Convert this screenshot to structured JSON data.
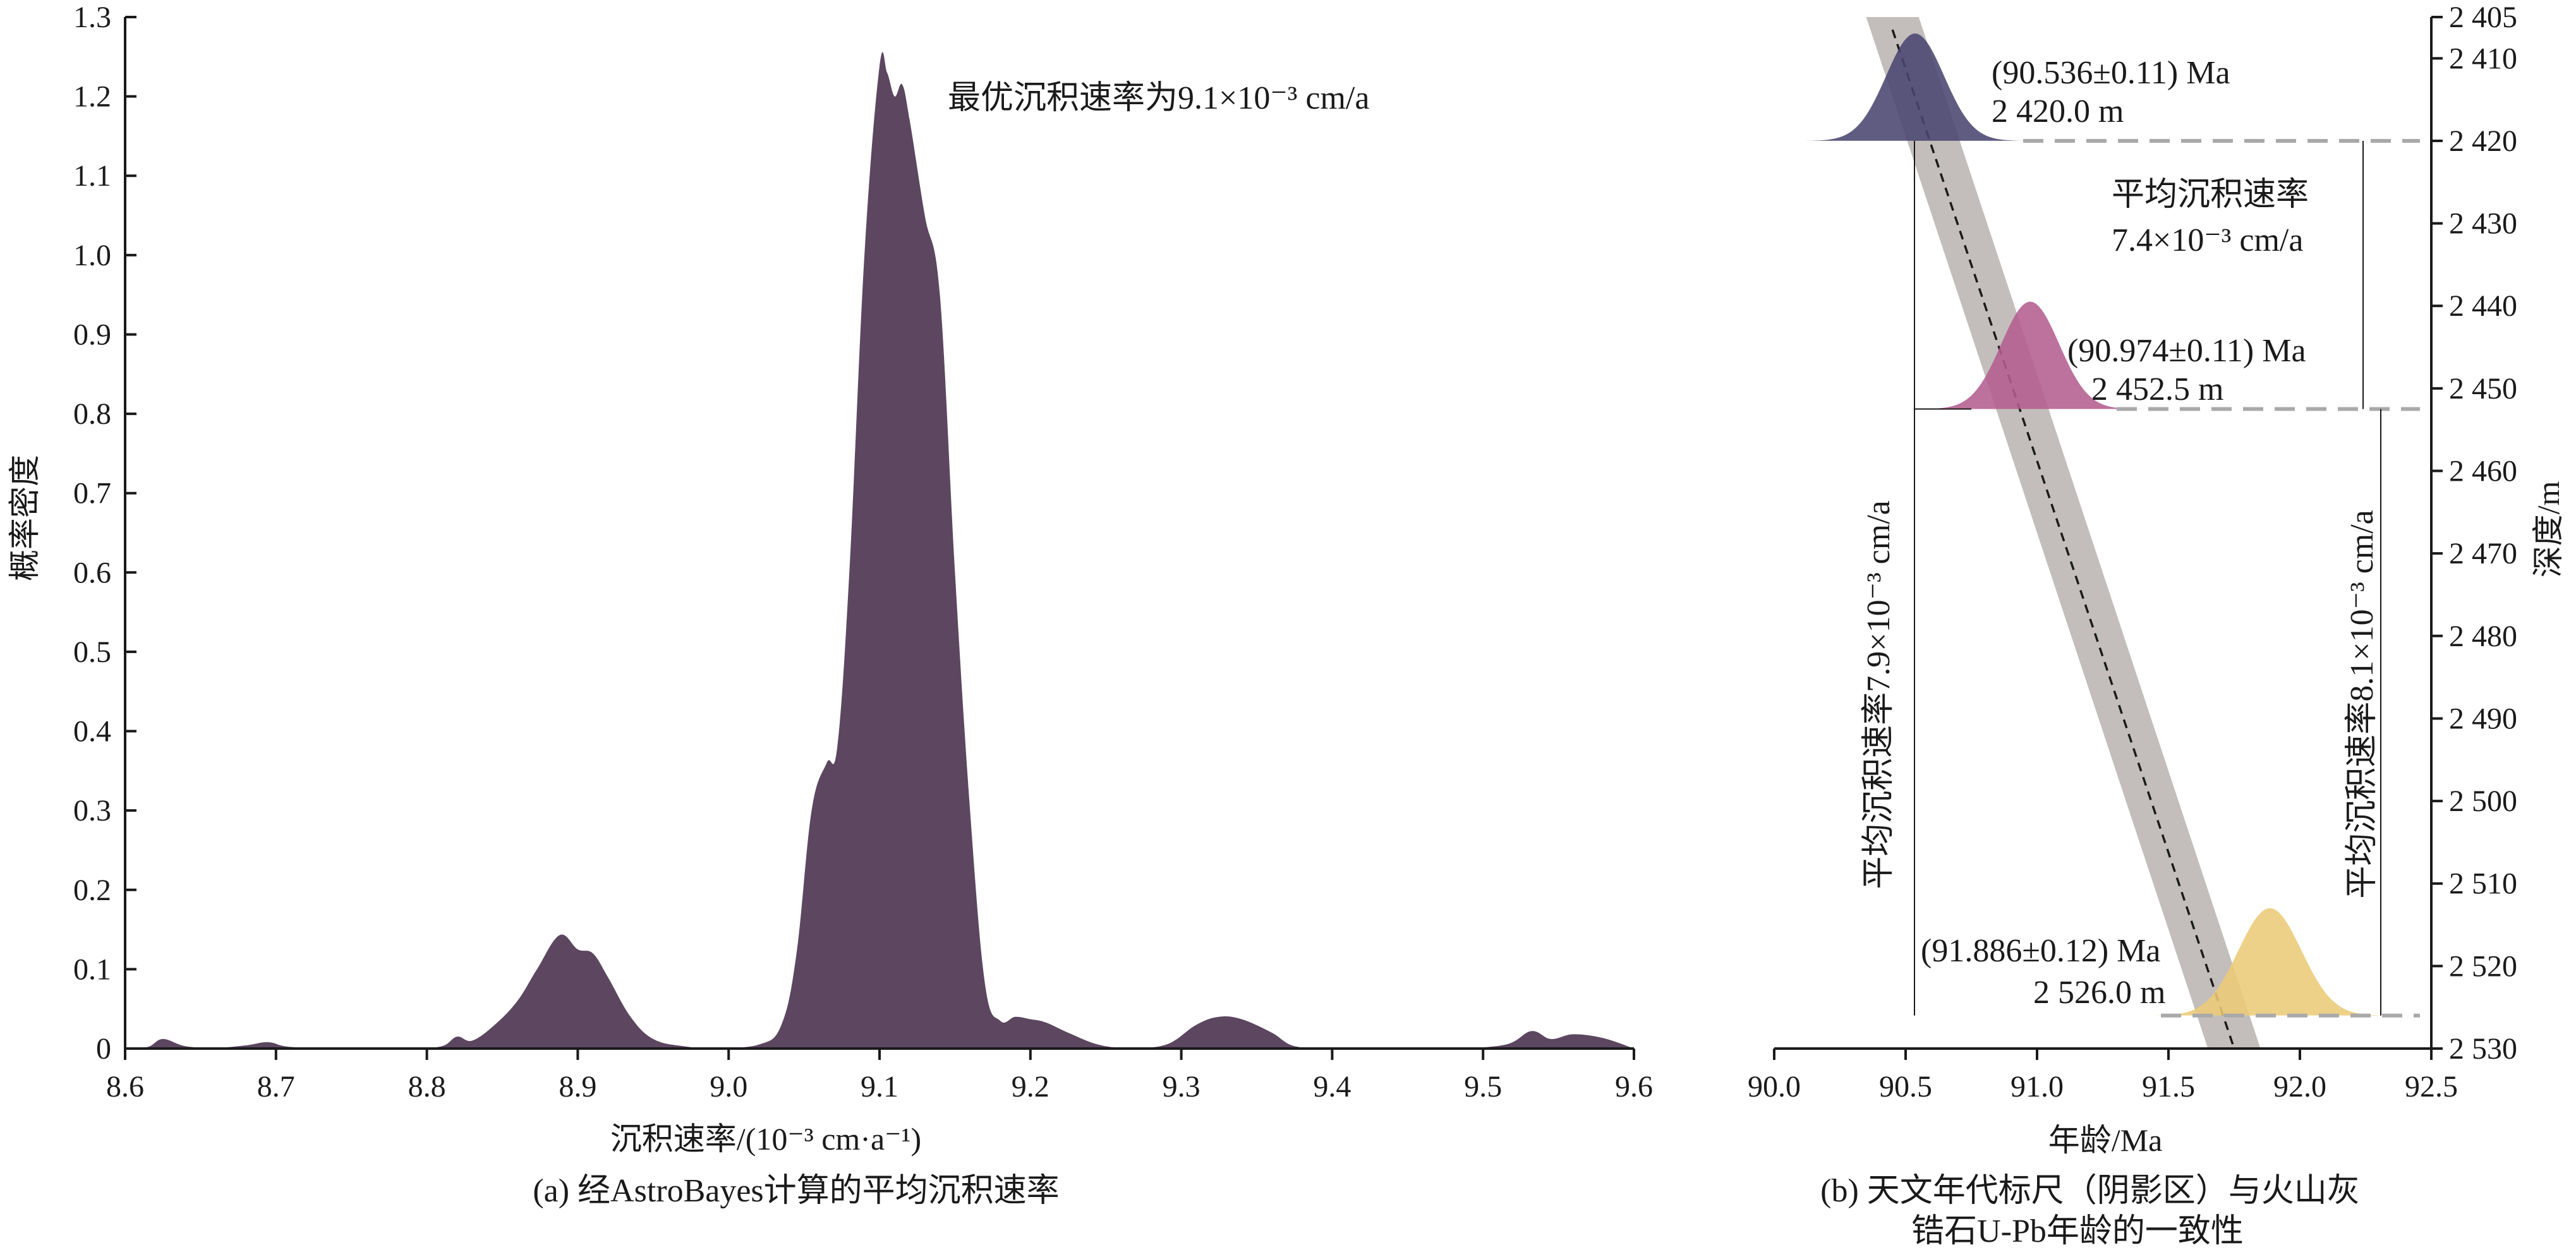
{
  "chart_data": [
    {
      "type": "area",
      "xlabel": "沉积速率/(10⁻³ cm·a⁻¹)",
      "ylabel": "概率密度",
      "caption": "(a) 经AstroBayes计算的平均沉积速率",
      "xlim": [
        8.6,
        9.6
      ],
      "ylim": [
        0,
        1.3
      ],
      "xticks": [
        "8.6",
        "8.7",
        "8.8",
        "8.9",
        "9.0",
        "9.1",
        "9.2",
        "9.3",
        "9.4",
        "9.5",
        "9.6"
      ],
      "yticks": [
        "0",
        "0.1",
        "0.2",
        "0.3",
        "0.4",
        "0.5",
        "0.6",
        "0.7",
        "0.8",
        "0.9",
        "1.0",
        "1.1",
        "1.2",
        "1.3"
      ],
      "annotation": "最优沉积速率为9.1×10⁻³ cm/a",
      "series_color": "#5c4660",
      "x": [
        8.6,
        8.615,
        8.625,
        8.64,
        8.66,
        8.68,
        8.695,
        8.71,
        8.75,
        8.77,
        8.79,
        8.81,
        8.82,
        8.83,
        8.845,
        8.86,
        8.873,
        8.888,
        8.9,
        8.91,
        8.92,
        8.935,
        8.95,
        8.97,
        8.99,
        9.02,
        9.035,
        9.045,
        9.055,
        9.065,
        9.072,
        9.08,
        9.09,
        9.1,
        9.105,
        9.11,
        9.115,
        9.12,
        9.13,
        9.14,
        9.15,
        9.16,
        9.17,
        9.18,
        9.19,
        9.2,
        9.21,
        9.225,
        9.245,
        9.265,
        9.29,
        9.31,
        9.325,
        9.34,
        9.36,
        9.375,
        9.4,
        9.43,
        9.45,
        9.48,
        9.515,
        9.532,
        9.545,
        9.56,
        9.58,
        9.6
      ],
      "y": [
        0.0,
        0.002,
        0.012,
        0.003,
        0.001,
        0.004,
        0.008,
        0.002,
        0.0,
        0.001,
        0.0,
        0.003,
        0.015,
        0.01,
        0.03,
        0.06,
        0.1,
        0.143,
        0.125,
        0.12,
        0.09,
        0.04,
        0.012,
        0.003,
        0.001,
        0.005,
        0.03,
        0.12,
        0.3,
        0.36,
        0.38,
        0.6,
        1.0,
        1.238,
        1.23,
        1.2,
        1.215,
        1.17,
        1.05,
        0.95,
        0.6,
        0.3,
        0.08,
        0.035,
        0.04,
        0.037,
        0.033,
        0.02,
        0.005,
        0.001,
        0.005,
        0.03,
        0.04,
        0.037,
        0.02,
        0.003,
        0.0,
        0.001,
        0.0,
        0.0,
        0.005,
        0.022,
        0.012,
        0.018,
        0.013,
        0.0
      ]
    },
    {
      "type": "scatter",
      "xlabel": "年龄/Ma",
      "ylabel": "深度/m",
      "caption": [
        "(b) 天文年代标尺（阴影区）与火山灰",
        "锆石U-Pb年龄的一致性"
      ],
      "xlim": [
        90.0,
        92.5
      ],
      "ylim": [
        2530,
        2405
      ],
      "xticks": [
        "90.0",
        "90.5",
        "91.0",
        "91.5",
        "92.0",
        "92.5"
      ],
      "yticks": [
        "2 405",
        "2 410",
        "2 420",
        "2 430",
        "2 440",
        "2 450",
        "2 460",
        "2 470",
        "2 480",
        "2 490",
        "2 500",
        "2 510",
        "2 520",
        "2 530"
      ],
      "ytick_values": [
        2405,
        2410,
        2420,
        2430,
        2440,
        2450,
        2460,
        2470,
        2480,
        2490,
        2500,
        2510,
        2520,
        2530
      ],
      "samples": [
        {
          "age": 90.536,
          "sigma": 0.11,
          "depth": 2420.0,
          "color": "#4a4670",
          "label_age": "(90.536±0.11) Ma",
          "label_depth": "2 420.0 m"
        },
        {
          "age": 90.974,
          "sigma": 0.11,
          "depth": 2452.5,
          "color": "#b45d8f",
          "label_age": "(90.974±0.11) Ma",
          "label_depth": "2 452.5 m"
        },
        {
          "age": 91.886,
          "sigma": 0.12,
          "depth": 2526.0,
          "color": "#eccb78",
          "label_age": "(91.886±0.12) Ma",
          "label_depth": "2 526.0 m"
        }
      ],
      "timescale_band": {
        "start_age": 90.45,
        "start_depth": 2405,
        "end_age": 91.75,
        "end_depth": 2530,
        "half_width_ma": 0.1,
        "color": "#bdb7b4"
      },
      "rates": [
        {
          "label": [
            "平均沉积速率",
            "7.4×10⁻³ cm/a"
          ],
          "orientation": "horizontal"
        },
        {
          "label": "平均沉积速率7.9×10⁻³ cm/a",
          "orientation": "vertical"
        },
        {
          "label": "平均沉积速率8.1×10⁻³ cm/a",
          "orientation": "vertical"
        }
      ]
    }
  ]
}
